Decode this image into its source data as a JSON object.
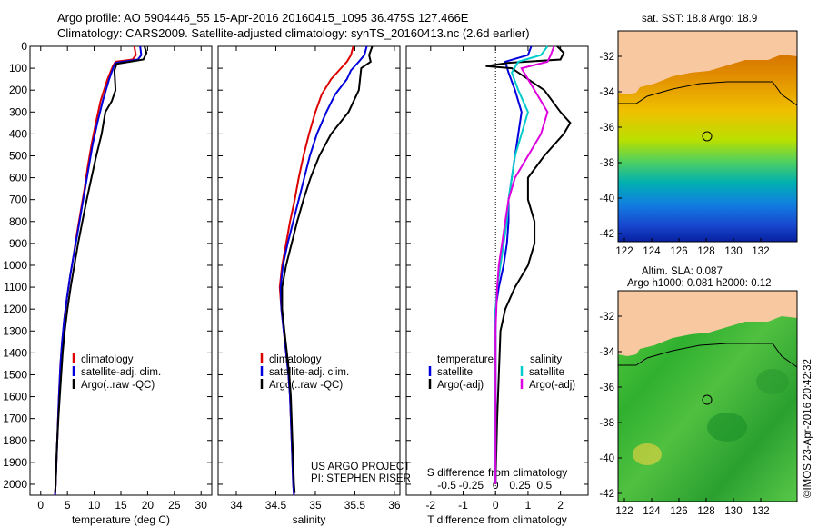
{
  "header": {
    "title_line1": "Argo profile: AO 5904446_55 15-Apr-2016 20160415_1095 36.475S 127.466E",
    "title_line2": "Climatology: CARS2009. Satellite-adjusted climatology: synTS_20160413.nc (2.6d earlier)"
  },
  "chart_data": [
    {
      "type": "line",
      "panel": "temperature",
      "xlabel": "temperature (deg C)",
      "x_ticks": [
        0,
        5,
        10,
        15,
        20,
        25,
        30
      ],
      "xlim": [
        -2,
        32
      ],
      "y_ticks": [
        0,
        100,
        200,
        300,
        400,
        500,
        600,
        700,
        800,
        900,
        1000,
        1100,
        1200,
        1300,
        1400,
        1500,
        1600,
        1700,
        1800,
        1900,
        2000
      ],
      "ylim": [
        2050,
        0
      ],
      "y_reversed": true,
      "legend": {
        "position": "lower-left",
        "entries": [
          "climatology",
          "satellite-adj. clim.",
          "Argo(..raw -QC)"
        ]
      },
      "series": [
        {
          "name": "climatology",
          "color": "#dd0000",
          "points": [
            [
              17.5,
              0
            ],
            [
              17.8,
              40
            ],
            [
              17.2,
              60
            ],
            [
              14,
              70
            ],
            [
              13.5,
              90
            ],
            [
              12.5,
              150
            ],
            [
              11.2,
              250
            ],
            [
              10.3,
              350
            ],
            [
              9.5,
              450
            ],
            [
              8.8,
              550
            ],
            [
              8.2,
              650
            ],
            [
              7.5,
              750
            ],
            [
              6.8,
              850
            ],
            [
              6.2,
              950
            ],
            [
              5.5,
              1050
            ],
            [
              4.9,
              1150
            ],
            [
              4.4,
              1250
            ],
            [
              4,
              1350
            ],
            [
              3.7,
              1450
            ],
            [
              3.4,
              1600
            ],
            [
              3.1,
              1800
            ],
            [
              2.8,
              2000
            ],
            [
              2.7,
              2050
            ]
          ]
        },
        {
          "name": "satellite-adj. clim.",
          "color": "#0000dd",
          "points": [
            [
              18.6,
              0
            ],
            [
              18.8,
              40
            ],
            [
              18.2,
              60
            ],
            [
              14,
              75
            ],
            [
              13.6,
              95
            ],
            [
              12.8,
              150
            ],
            [
              11.6,
              250
            ],
            [
              10.6,
              350
            ],
            [
              9.7,
              450
            ],
            [
              9,
              550
            ],
            [
              8.3,
              650
            ],
            [
              7.6,
              750
            ],
            [
              6.9,
              850
            ],
            [
              6.2,
              950
            ],
            [
              5.5,
              1050
            ],
            [
              4.9,
              1150
            ],
            [
              4.4,
              1250
            ],
            [
              4,
              1350
            ],
            [
              3.7,
              1450
            ],
            [
              3.4,
              1600
            ],
            [
              3.1,
              1800
            ],
            [
              2.8,
              2000
            ],
            [
              2.7,
              2050
            ]
          ]
        },
        {
          "name": "Argo(..raw -QC)",
          "color": "#000000",
          "points": [
            [
              19.4,
              0
            ],
            [
              19.8,
              30
            ],
            [
              19.2,
              60
            ],
            [
              14.2,
              80
            ],
            [
              13.8,
              110
            ],
            [
              14,
              200
            ],
            [
              13.3,
              250
            ],
            [
              12.1,
              300
            ],
            [
              11.4,
              400
            ],
            [
              10.4,
              500
            ],
            [
              9.5,
              600
            ],
            [
              8.6,
              700
            ],
            [
              7.8,
              800
            ],
            [
              7,
              900
            ],
            [
              6.3,
              1000
            ],
            [
              5.6,
              1100
            ],
            [
              5,
              1200
            ],
            [
              4.5,
              1300
            ],
            [
              4.1,
              1400
            ],
            [
              3.7,
              1550
            ],
            [
              3.3,
              1700
            ],
            [
              3,
              1850
            ],
            [
              2.8,
              2000
            ],
            [
              2.7,
              2040
            ]
          ]
        }
      ]
    },
    {
      "type": "line",
      "panel": "salinity",
      "xlabel": "salinity",
      "x_ticks": [
        34,
        34.5,
        35,
        35.5,
        36
      ],
      "xlim": [
        33.77,
        36.07
      ],
      "ylim": [
        2050,
        0
      ],
      "y_reversed": true,
      "legend": {
        "position": "lower-left",
        "entries": [
          "climatology",
          "satellite-adj. clim.",
          "Argo(..raw -QC)"
        ]
      },
      "annotation": [
        "US ARGO PROJECT",
        "PI: STEPHEN RISER"
      ],
      "series": [
        {
          "name": "climatology",
          "color": "#dd0000",
          "points": [
            [
              35.48,
              0
            ],
            [
              35.45,
              40
            ],
            [
              35.4,
              70
            ],
            [
              35.3,
              110
            ],
            [
              35.2,
              150
            ],
            [
              35.08,
              220
            ],
            [
              35,
              300
            ],
            [
              34.92,
              400
            ],
            [
              34.85,
              500
            ],
            [
              34.79,
              600
            ],
            [
              34.74,
              700
            ],
            [
              34.68,
              800
            ],
            [
              34.63,
              900
            ],
            [
              34.58,
              1000
            ],
            [
              34.55,
              1100
            ],
            [
              34.57,
              1200
            ],
            [
              34.6,
              1300
            ],
            [
              34.63,
              1400
            ],
            [
              34.66,
              1500
            ],
            [
              34.68,
              1600
            ],
            [
              34.7,
              1800
            ],
            [
              34.72,
              2000
            ],
            [
              34.73,
              2050
            ]
          ]
        },
        {
          "name": "satellite-adj. clim.",
          "color": "#0000dd",
          "points": [
            [
              35.65,
              0
            ],
            [
              35.62,
              40
            ],
            [
              35.55,
              70
            ],
            [
              35.45,
              110
            ],
            [
              35.4,
              150
            ],
            [
              35.25,
              220
            ],
            [
              35.14,
              300
            ],
            [
              35.02,
              400
            ],
            [
              34.93,
              500
            ],
            [
              34.86,
              600
            ],
            [
              34.79,
              700
            ],
            [
              34.72,
              800
            ],
            [
              34.65,
              900
            ],
            [
              34.59,
              1000
            ],
            [
              34.56,
              1100
            ],
            [
              34.57,
              1200
            ],
            [
              34.6,
              1300
            ],
            [
              34.63,
              1400
            ],
            [
              34.66,
              1500
            ],
            [
              34.68,
              1600
            ],
            [
              34.7,
              1800
            ],
            [
              34.72,
              2000
            ],
            [
              34.73,
              2050
            ]
          ]
        },
        {
          "name": "Argo(..raw -QC)",
          "color": "#000000",
          "points": [
            [
              35.72,
              0
            ],
            [
              35.68,
              40
            ],
            [
              35.7,
              70
            ],
            [
              35.58,
              100
            ],
            [
              35.55,
              200
            ],
            [
              35.42,
              300
            ],
            [
              35.2,
              400
            ],
            [
              35.05,
              500
            ],
            [
              34.94,
              600
            ],
            [
              34.85,
              700
            ],
            [
              34.77,
              800
            ],
            [
              34.7,
              900
            ],
            [
              34.63,
              1000
            ],
            [
              34.58,
              1100
            ],
            [
              34.58,
              1200
            ],
            [
              34.61,
              1300
            ],
            [
              34.64,
              1400
            ],
            [
              34.67,
              1500
            ],
            [
              34.69,
              1600
            ],
            [
              34.71,
              1800
            ],
            [
              34.73,
              2000
            ],
            [
              34.74,
              2040
            ]
          ]
        }
      ]
    },
    {
      "type": "line",
      "panel": "difference",
      "xlabel": "T difference from climatology",
      "top_axis_label": "S difference from climatology",
      "x_ticks": [
        -2,
        -1,
        0,
        1,
        2
      ],
      "x_ticks_top": [
        "-0.5",
        "-0.25",
        "0",
        "0.25",
        "0.5"
      ],
      "xlim": [
        -2.75,
        2.85
      ],
      "ylim": [
        2050,
        0
      ],
      "y_reversed": true,
      "legend": {
        "position": "lower-left",
        "entries": [
          "temperature satellite",
          "temperature Argo(-adj)",
          "salinity satellite",
          "salinity Argo(-adj)"
        ],
        "headers": [
          "temperature",
          "salinity"
        ],
        "labels": [
          "satellite",
          "Argo(-adj)",
          "satellite",
          "Argo(-adj)"
        ]
      },
      "series": [
        {
          "name": "temperature satellite",
          "color": "#0000dd",
          "points": [
            [
              1.1,
              0
            ],
            [
              1,
              40
            ],
            [
              0.3,
              70
            ],
            [
              0.4,
              120
            ],
            [
              0.6,
              200
            ],
            [
              0.8,
              300
            ],
            [
              0.7,
              400
            ],
            [
              0.6,
              500
            ],
            [
              0.5,
              600
            ],
            [
              0.4,
              700
            ],
            [
              0.4,
              800
            ],
            [
              0.35,
              900
            ],
            [
              0.25,
              1000
            ],
            [
              0.1,
              1100
            ],
            [
              0,
              1200
            ],
            [
              0,
              1400
            ],
            [
              0,
              2000
            ]
          ]
        },
        {
          "name": "temperature Argo(-adj)",
          "color": "#000000",
          "points": [
            [
              1.9,
              0
            ],
            [
              2.1,
              30
            ],
            [
              2,
              60
            ],
            [
              0.4,
              75
            ],
            [
              -0.3,
              90
            ],
            [
              0.5,
              100
            ],
            [
              1.5,
              200
            ],
            [
              2,
              300
            ],
            [
              2.3,
              350
            ],
            [
              2.1,
              400
            ],
            [
              1.5,
              500
            ],
            [
              1,
              600
            ],
            [
              1,
              700
            ],
            [
              1.2,
              800
            ],
            [
              1.2,
              900
            ],
            [
              1,
              1000
            ],
            [
              0.6,
              1100
            ],
            [
              0.3,
              1200
            ],
            [
              0.15,
              1300
            ],
            [
              0.1,
              1500
            ],
            [
              0.05,
              1700
            ],
            [
              0,
              2000
            ]
          ]
        },
        {
          "name": "salinity satellite",
          "color": "#00cccc",
          "points": [
            [
              1.6,
              0
            ],
            [
              1.4,
              40
            ],
            [
              0.7,
              70
            ],
            [
              0.5,
              120
            ],
            [
              0.7,
              200
            ],
            [
              1,
              300
            ],
            [
              0.8,
              400
            ],
            [
              0.6,
              500
            ],
            [
              0.5,
              600
            ],
            [
              0.4,
              700
            ],
            [
              0.35,
              800
            ],
            [
              0.25,
              900
            ],
            [
              0.15,
              1000
            ],
            [
              0.05,
              1100
            ],
            [
              0,
              1200
            ],
            [
              0,
              2000
            ]
          ]
        },
        {
          "name": "salinity Argo(-adj)",
          "color": "#dd00dd",
          "points": [
            [
              1.8,
              0
            ],
            [
              1.7,
              40
            ],
            [
              1.6,
              70
            ],
            [
              0.8,
              100
            ],
            [
              1.2,
              200
            ],
            [
              1.6,
              300
            ],
            [
              1.4,
              400
            ],
            [
              1,
              500
            ],
            [
              0.6,
              600
            ],
            [
              0.4,
              700
            ],
            [
              0.3,
              800
            ],
            [
              0.2,
              900
            ],
            [
              0.1,
              1000
            ],
            [
              0.05,
              1100
            ],
            [
              0,
              1300
            ],
            [
              0,
              2000
            ]
          ]
        }
      ]
    }
  ],
  "maps": {
    "map1_title": "sat. SST: 18.8  Argo: 18.9",
    "map2_title_line1": "Altim. SLA: 0.087",
    "map2_title_line2": "Argo h1000: 0.081 h2000: 0.12",
    "lon_ticks": [
      "122",
      "124",
      "126",
      "128",
      "130",
      "132"
    ],
    "lat_ticks": [
      "-32",
      "-34",
      "-36",
      "-38",
      "-40",
      "-42"
    ],
    "argo_position": {
      "lon": 127.466,
      "lat": -36.475
    }
  },
  "credit": "©IMOS 23-Apr-2016 20:42:32"
}
